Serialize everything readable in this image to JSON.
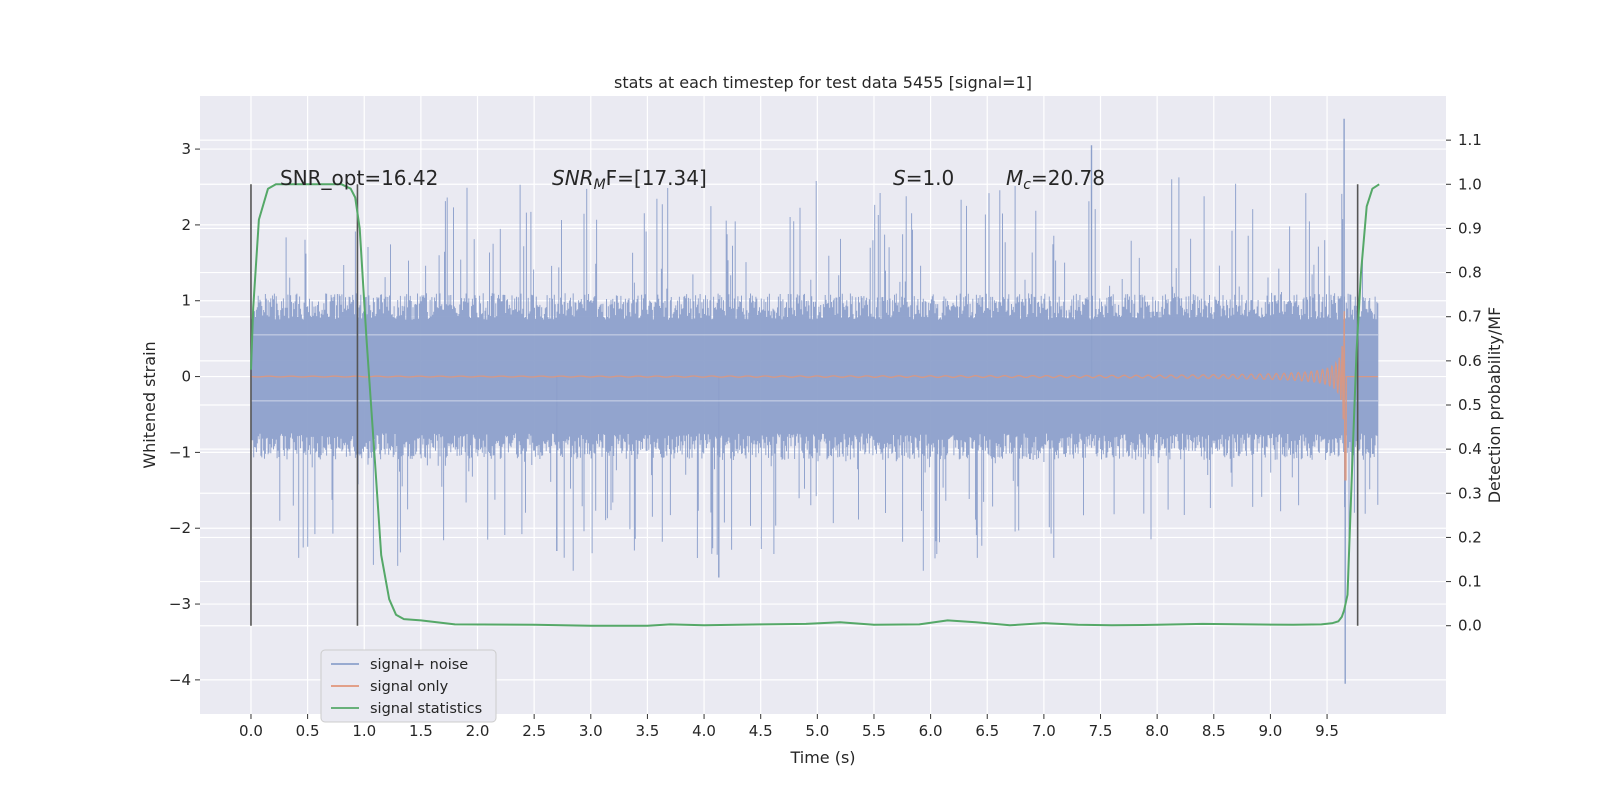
{
  "chart_data": {
    "type": "line",
    "title": "stats at each timestep for test data 5455 [signal=1]",
    "xlabel": "Time (s)",
    "ylabel": "Whitened strain",
    "y2label": "Detection probability/MF",
    "xlim": [
      -0.45,
      10.55
    ],
    "ylim": [
      -4.45,
      3.7
    ],
    "y2lim": [
      -0.2,
      1.2
    ],
    "x_ticks": [
      "0.0",
      "0.5",
      "1.0",
      "1.5",
      "2.0",
      "2.5",
      "3.0",
      "3.5",
      "4.0",
      "4.5",
      "5.0",
      "5.5",
      "6.0",
      "6.5",
      "7.0",
      "7.5",
      "8.0",
      "8.5",
      "9.0",
      "9.5"
    ],
    "y_ticks": [
      "3",
      "2",
      "1",
      "0",
      "−1",
      "−2",
      "−3",
      "−4"
    ],
    "y2_ticks": [
      "1.1",
      "1.0",
      "0.9",
      "0.8",
      "0.7",
      "0.6",
      "0.5",
      "0.4",
      "0.3",
      "0.2",
      "0.1",
      "0.0"
    ],
    "grid": true,
    "legend_position": "lower-left",
    "annotations": {
      "snr_opt": "SNR_opt=16.42",
      "snr_mf_sym": "SNR",
      "snr_mf_sub": "M",
      "snr_mf_rest": "F=[17.34]",
      "s_sym": "S",
      "s_rest": "=1.0",
      "mc_sym": "M",
      "mc_sub": "c",
      "mc_rest": "=20.78"
    },
    "vlines_x": [
      0.0,
      0.94,
      9.77
    ],
    "colors": {
      "noise": "#8da0cb",
      "signal": "#e0967a",
      "stats": "#55a868",
      "background": "#eaeaf2",
      "vline": "#555555"
    },
    "series": [
      {
        "name": "signal+ noise",
        "kind": "noise_band",
        "x_range": [
          0.0,
          9.95
        ],
        "core_abs": 0.75,
        "peak_abs": 2.3,
        "extremes": [
          {
            "x": 7.42,
            "y": 3.05
          },
          {
            "x": 9.65,
            "y": 3.4
          },
          {
            "x": 9.66,
            "y": -4.05
          },
          {
            "x": 4.13,
            "y": -2.65
          },
          {
            "x": 2.7,
            "y": -2.3
          }
        ]
      },
      {
        "name": "signal only",
        "kind": "chirp",
        "x_range": [
          0.0,
          9.67
        ],
        "merger_x": 9.66,
        "peak_amplitude": 2.4
      },
      {
        "name": "signal statistics",
        "kind": "line",
        "axis": "right",
        "x": [
          0.0,
          0.02,
          0.07,
          0.15,
          0.22,
          0.3,
          0.5,
          0.8,
          0.88,
          0.92,
          0.96,
          1.02,
          1.1,
          1.15,
          1.22,
          1.28,
          1.35,
          1.5,
          1.8,
          2.5,
          3.0,
          3.5,
          3.7,
          4.0,
          4.5,
          4.9,
          5.2,
          5.5,
          5.9,
          6.15,
          6.4,
          6.7,
          7.0,
          7.3,
          7.6,
          8.0,
          8.4,
          8.8,
          9.2,
          9.45,
          9.55,
          9.6,
          9.63,
          9.65,
          9.68,
          9.72,
          9.76,
          9.8,
          9.85,
          9.9,
          9.96
        ],
        "y": [
          0.58,
          0.72,
          0.92,
          0.99,
          1.0,
          1.0,
          1.0,
          1.0,
          0.99,
          0.97,
          0.9,
          0.65,
          0.35,
          0.16,
          0.06,
          0.025,
          0.015,
          0.012,
          0.003,
          0.002,
          0.0,
          0.0,
          0.003,
          0.001,
          0.003,
          0.004,
          0.008,
          0.002,
          0.003,
          0.012,
          0.008,
          0.001,
          0.006,
          0.002,
          0.001,
          0.002,
          0.004,
          0.003,
          0.002,
          0.003,
          0.006,
          0.01,
          0.02,
          0.035,
          0.07,
          0.35,
          0.62,
          0.8,
          0.95,
          0.99,
          1.0
        ]
      }
    ]
  }
}
